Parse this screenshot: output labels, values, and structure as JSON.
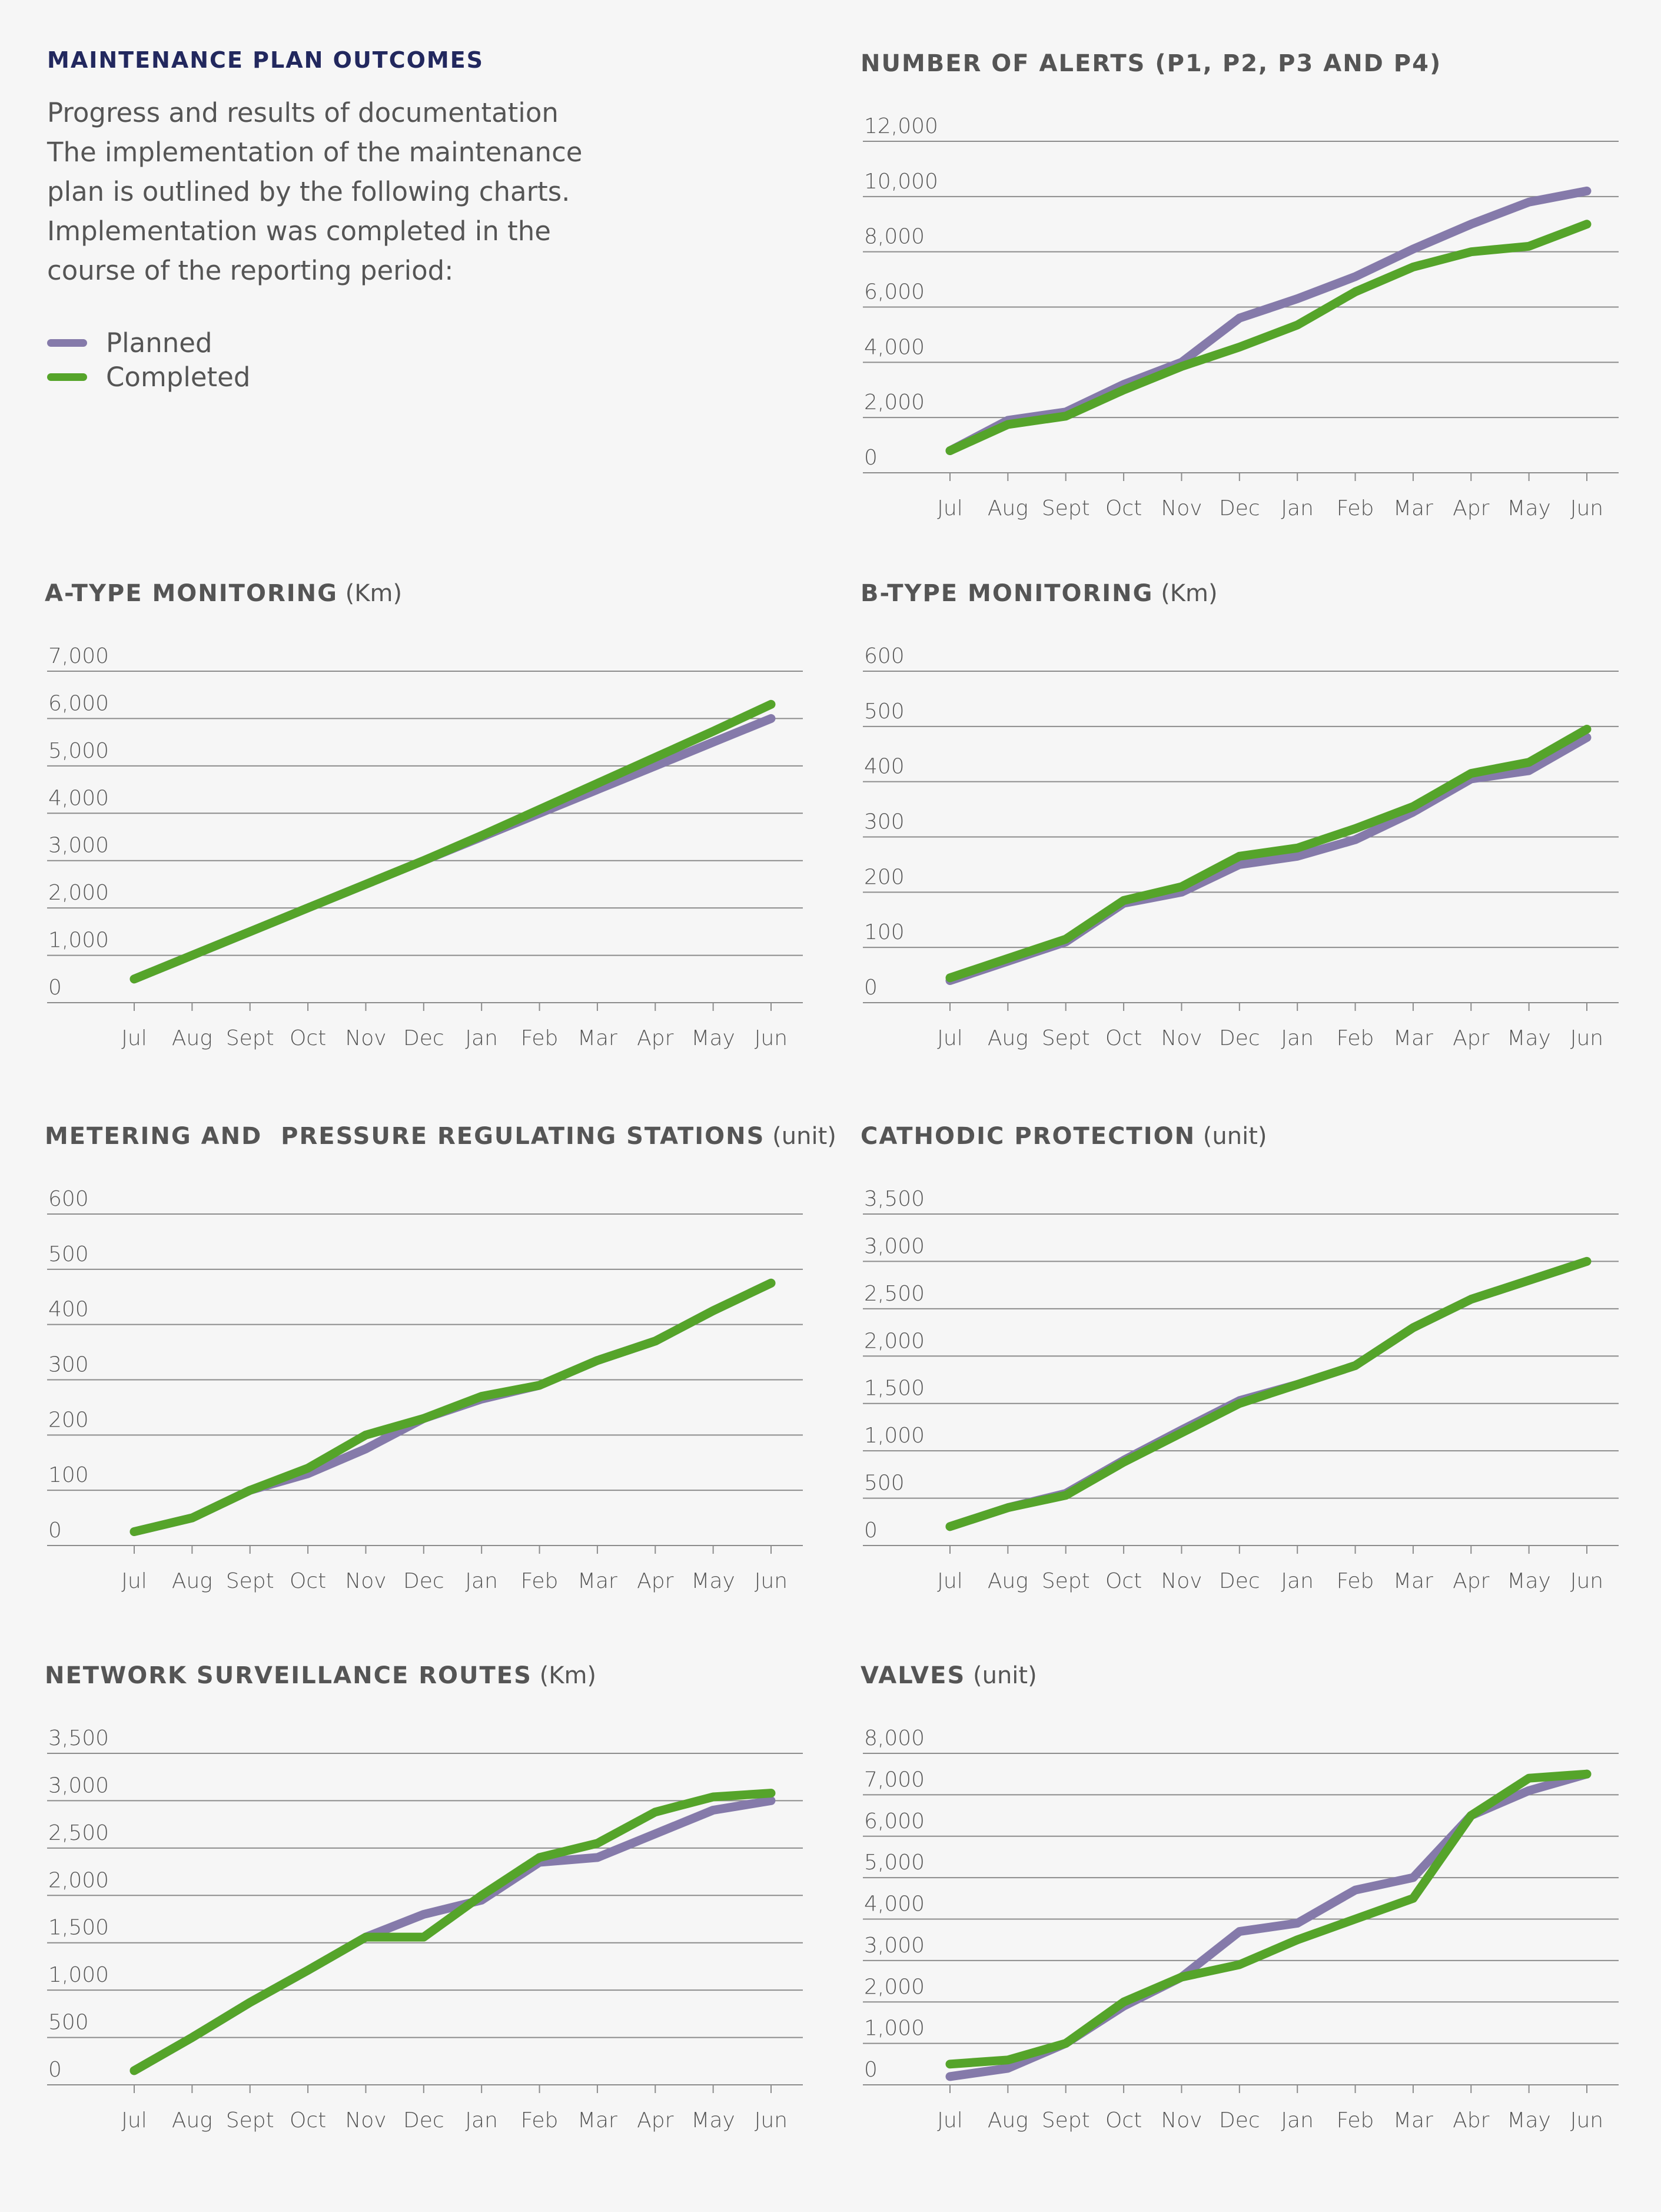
{
  "intro": {
    "title": "MAINTENANCE PLAN OUTCOMES",
    "text": "Progress and results of documentation\nThe implementation of the maintenance\nplan is outlined by the following charts.\nImplementation was completed in the\ncourse of the reporting period:"
  },
  "legend": {
    "items": [
      {
        "label": "Planned",
        "color": "#857aaa"
      },
      {
        "label": "Completed",
        "color": "#55a42a"
      }
    ]
  },
  "chart_data": [
    {
      "type": "line",
      "title": "NUMBER OF ALERTS (P1, P2, P3 AND P4)",
      "unit": "",
      "categories": [
        "Jul",
        "Aug",
        "Sept",
        "Oct",
        "Nov",
        "Dec",
        "Jan",
        "Feb",
        "Mar",
        "Apr",
        "May",
        "Jun"
      ],
      "y_ticks": [
        "0",
        "2,000",
        "4,000",
        "6,000",
        "8,000",
        "10,000",
        "12,000"
      ],
      "ylim": [
        0,
        12000
      ],
      "series": [
        {
          "name": "Planned",
          "values": [
            800,
            1900,
            2200,
            3200,
            4000,
            5600,
            6300,
            7100,
            8100,
            9000,
            9800,
            10200
          ]
        },
        {
          "name": "Completed",
          "values": [
            800,
            1750,
            2050,
            3000,
            3850,
            4550,
            5350,
            6550,
            7450,
            8000,
            8200,
            9000
          ]
        }
      ]
    },
    {
      "type": "line",
      "title": "A-TYPE MONITORING",
      "unit": "(Km)",
      "categories": [
        "Jul",
        "Aug",
        "Sept",
        "Oct",
        "Nov",
        "Dec",
        "Jan",
        "Feb",
        "Mar",
        "Apr",
        "May",
        "Jun"
      ],
      "y_ticks": [
        "0",
        "1,000",
        "2,000",
        "3,000",
        "4,000",
        "5,000",
        "6,000",
        "7,000"
      ],
      "ylim": [
        0,
        7000
      ],
      "series": [
        {
          "name": "Planned",
          "values": [
            500,
            1000,
            1500,
            2000,
            2500,
            3000,
            3500,
            4000,
            4500,
            5000,
            5500,
            6000
          ]
        },
        {
          "name": "Completed",
          "values": [
            500,
            1000,
            1500,
            2000,
            2500,
            3000,
            3530,
            4080,
            4630,
            5180,
            5730,
            6300
          ]
        }
      ]
    },
    {
      "type": "line",
      "title": "B-TYPE MONITORING",
      "unit": "(Km)",
      "categories": [
        "Jul",
        "Aug",
        "Sept",
        "Oct",
        "Nov",
        "Dec",
        "Jan",
        "Feb",
        "Mar",
        "Apr",
        "May",
        "Jun"
      ],
      "y_ticks": [
        "0",
        "100",
        "200",
        "300",
        "400",
        "500",
        "600"
      ],
      "ylim": [
        0,
        600
      ],
      "series": [
        {
          "name": "Planned",
          "values": [
            40,
            75,
            110,
            180,
            200,
            250,
            265,
            295,
            345,
            405,
            420,
            480
          ]
        },
        {
          "name": "Completed",
          "values": [
            45,
            80,
            115,
            185,
            210,
            265,
            280,
            315,
            355,
            415,
            435,
            495
          ]
        }
      ]
    },
    {
      "type": "line",
      "title": "METERING AND  PRESSURE REGULATING STATIONS",
      "unit": "(unit)",
      "categories": [
        "Jul",
        "Aug",
        "Sept",
        "Oct",
        "Nov",
        "Dec",
        "Jan",
        "Feb",
        "Mar",
        "Apr",
        "May",
        "Jun"
      ],
      "y_ticks": [
        "0",
        "100",
        "200",
        "300",
        "400",
        "500",
        "600"
      ],
      "ylim": [
        0,
        600
      ],
      "series": [
        {
          "name": "Planned",
          "values": [
            25,
            50,
            100,
            130,
            175,
            230,
            265,
            290,
            335,
            370,
            425,
            475
          ]
        },
        {
          "name": "Completed",
          "values": [
            25,
            50,
            100,
            140,
            200,
            230,
            270,
            290,
            335,
            370,
            425,
            475
          ]
        }
      ]
    },
    {
      "type": "line",
      "title": "CATHODIC PROTECTION",
      "unit": "(unit)",
      "categories": [
        "Jul",
        "Aug",
        "Sept",
        "Oct",
        "Nov",
        "Dec",
        "Jan",
        "Feb",
        "Mar",
        "Apr",
        "May",
        "Jun"
      ],
      "y_ticks": [
        "0",
        "500",
        "1,000",
        "1,500",
        "2,000",
        "2,500",
        "3,000",
        "3,500"
      ],
      "ylim": [
        0,
        3500
      ],
      "series": [
        {
          "name": "Planned",
          "values": [
            200,
            400,
            550,
            900,
            1220,
            1530,
            1700,
            1900,
            2300,
            2600,
            2800,
            3000
          ]
        },
        {
          "name": "Completed",
          "values": [
            200,
            400,
            530,
            880,
            1190,
            1500,
            1700,
            1900,
            2300,
            2600,
            2800,
            3000
          ]
        }
      ]
    },
    {
      "type": "line",
      "title": "NETWORK SURVEILLANCE ROUTES",
      "unit": "(Km)",
      "categories": [
        "Jul",
        "Aug",
        "Sept",
        "Oct",
        "Nov",
        "Dec",
        "Jan",
        "Feb",
        "Mar",
        "Apr",
        "May",
        "Jun"
      ],
      "y_ticks": [
        "0",
        "500",
        "1,000",
        "1,500",
        "2,000",
        "2,500",
        "3,000",
        "3,500"
      ],
      "ylim": [
        0,
        3500
      ],
      "series": [
        {
          "name": "Planned",
          "values": [
            150,
            500,
            870,
            1210,
            1560,
            1800,
            1950,
            2350,
            2400,
            2650,
            2900,
            3000
          ]
        },
        {
          "name": "Completed",
          "values": [
            150,
            500,
            870,
            1210,
            1560,
            1560,
            2000,
            2400,
            2550,
            2880,
            3040,
            3080
          ]
        }
      ]
    },
    {
      "type": "line",
      "title": "VALVES",
      "unit": "(unit)",
      "categories": [
        "Jul",
        "Aug",
        "Sept",
        "Oct",
        "Nov",
        "Dec",
        "Jan",
        "Feb",
        "Mar",
        "Abr",
        "May",
        "Jun"
      ],
      "y_ticks": [
        "0",
        "1,000",
        "2,000",
        "3,000",
        "4,000",
        "5,000",
        "6,000",
        "7,000",
        "8,000"
      ],
      "ylim": [
        0,
        8000
      ],
      "series": [
        {
          "name": "Planned",
          "values": [
            200,
            400,
            1000,
            1900,
            2600,
            3700,
            3900,
            4700,
            5000,
            6500,
            7100,
            7500
          ]
        },
        {
          "name": "Completed",
          "values": [
            500,
            600,
            1000,
            2000,
            2600,
            2900,
            3500,
            4000,
            4500,
            6500,
            7400,
            7500
          ]
        }
      ]
    }
  ]
}
